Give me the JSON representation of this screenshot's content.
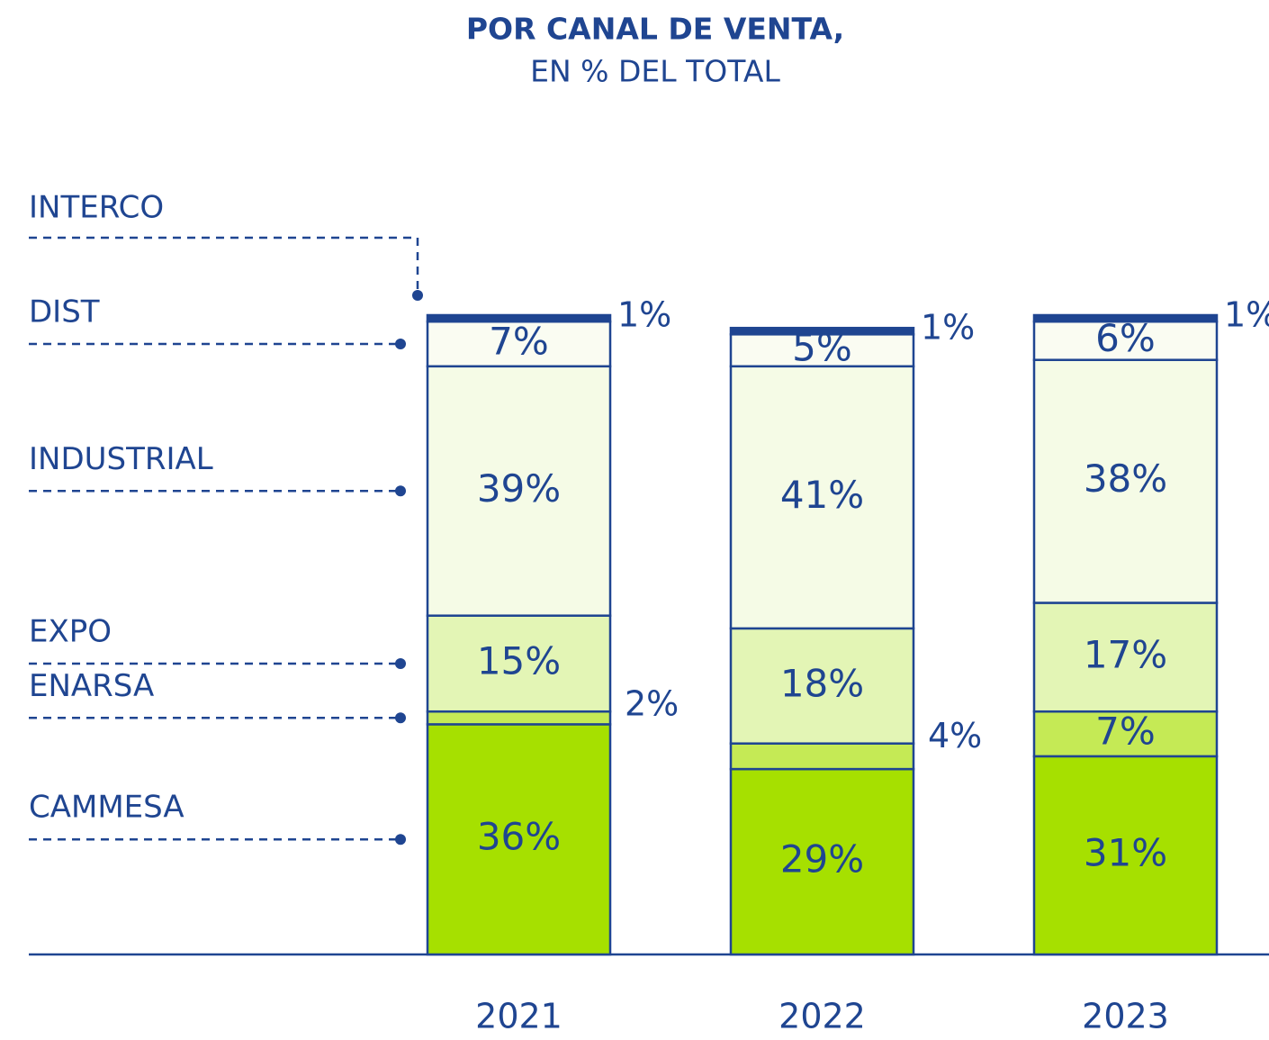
{
  "chart_data": {
    "type": "stacked_bar",
    "title": "POR CANAL DE VENTA,",
    "subtitle": "EN % DEL TOTAL",
    "categories": [
      "2021",
      "2022",
      "2023"
    ],
    "series": [
      {
        "name": "CAMMESA",
        "color": "#a6e000",
        "values": [
          36,
          29,
          31
        ],
        "value_labels": [
          "36%",
          "29%",
          "31%"
        ]
      },
      {
        "name": "ENARSA",
        "color": "#c5ea55",
        "values": [
          2,
          4,
          7
        ],
        "value_labels": [
          "2%",
          "4%",
          "7%"
        ]
      },
      {
        "name": "EXPO",
        "color": "#e3f5b5",
        "values": [
          15,
          18,
          17
        ],
        "value_labels": [
          "15%",
          "18%",
          "17%"
        ]
      },
      {
        "name": "INDUSTRIAL",
        "color": "#f5fbe6",
        "values": [
          39,
          41,
          38
        ],
        "value_labels": [
          "39%",
          "41%",
          "38%"
        ]
      },
      {
        "name": "DIST",
        "color": "#fafcf2",
        "values": [
          7,
          5,
          6
        ],
        "value_labels": [
          "7%",
          "5%",
          "6%"
        ]
      },
      {
        "name": "INTERCO",
        "color": "#1f4591",
        "values": [
          1,
          1,
          1
        ],
        "value_labels": [
          "1%",
          "1%",
          "1%"
        ]
      }
    ]
  }
}
